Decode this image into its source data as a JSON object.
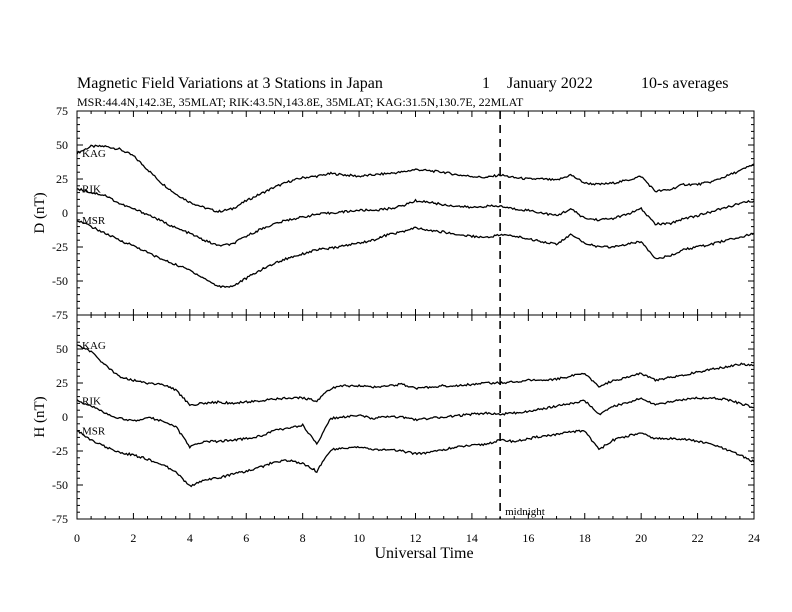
{
  "chart_data": {
    "type": "line",
    "title": "Magnetic Field Variations at 3 Stations in Japan",
    "date_day": "1",
    "date_month_year": "January  2022",
    "averaging": "10-s averages",
    "subtitle": "MSR:44.4N,142.3E, 35MLAT;  RIK:43.5N,143.8E, 35MLAT;  KAG:31.5N,130.7E, 22MLAT",
    "xlabel": "Universal Time",
    "xlim": [
      0,
      24
    ],
    "xticks": [
      0,
      2,
      4,
      6,
      8,
      10,
      12,
      14,
      16,
      18,
      20,
      22,
      24
    ],
    "annotation": {
      "label": "midnight",
      "x": 15
    },
    "panels": [
      {
        "id": "D",
        "ylabel": "D (nT)",
        "ylim": [
          -75,
          75
        ],
        "yticks": [
          75,
          50,
          25,
          0,
          -25,
          -50,
          -75
        ],
        "series": [
          {
            "name": "KAG",
            "x": [
              0,
              0.5,
              1,
              1.5,
              2,
              2.5,
              3,
              3.5,
              4,
              4.5,
              5,
              5.5,
              6,
              6.5,
              7,
              7.5,
              8,
              8.5,
              9,
              9.5,
              10,
              10.5,
              11,
              11.5,
              12,
              12.5,
              13,
              13.5,
              14,
              14.5,
              15,
              15.5,
              16,
              16.5,
              17,
              17.5,
              18,
              18.5,
              19,
              19.5,
              20,
              20.5,
              21,
              21.5,
              22,
              22.5,
              23,
              23.5,
              24
            ],
            "y": [
              44,
              49,
              49,
              47,
              42,
              32,
              22,
              14,
              8,
              4,
              1,
              3,
              9,
              14,
              19,
              23,
              26,
              27,
              29,
              28,
              27,
              28,
              29,
              30,
              32,
              31,
              30,
              28,
              27,
              26,
              28,
              26,
              25,
              25,
              24,
              28,
              22,
              21,
              22,
              24,
              27,
              16,
              17,
              21,
              21,
              23,
              27,
              31,
              36
            ]
          },
          {
            "name": "RIK",
            "x": [
              0,
              0.5,
              1,
              1.5,
              2,
              2.5,
              3,
              3.5,
              4,
              4.5,
              5,
              5.5,
              6,
              6.5,
              7,
              7.5,
              8,
              8.5,
              9,
              9.5,
              10,
              10.5,
              11,
              11.5,
              12,
              12.5,
              13,
              13.5,
              14,
              14.5,
              15,
              15.5,
              16,
              16.5,
              17,
              17.5,
              18,
              18.5,
              19,
              19.5,
              20,
              20.5,
              21,
              21.5,
              22,
              22.5,
              23,
              23.5,
              24
            ],
            "y": [
              18,
              15,
              13,
              7,
              3,
              -1,
              -6,
              -11,
              -15,
              -20,
              -24,
              -23,
              -17,
              -12,
              -8,
              -5,
              -3,
              -1,
              0,
              1,
              2,
              2,
              3,
              5,
              9,
              8,
              6,
              5,
              4,
              5,
              5,
              3,
              2,
              0,
              -2,
              3,
              -4,
              -5,
              -4,
              -1,
              3,
              -8,
              -8,
              -4,
              -2,
              1,
              4,
              7,
              9
            ]
          },
          {
            "name": "MSR",
            "x": [
              0,
              0.5,
              1,
              1.5,
              2,
              2.5,
              3,
              3.5,
              4,
              4.5,
              5,
              5.5,
              6,
              6.5,
              7,
              7.5,
              8,
              8.5,
              9,
              9.5,
              10,
              10.5,
              11,
              11.5,
              12,
              12.5,
              13,
              13.5,
              14,
              14.5,
              15,
              15.5,
              16,
              16.5,
              17,
              17.5,
              18,
              18.5,
              19,
              19.5,
              20,
              20.5,
              21,
              21.5,
              22,
              22.5,
              23,
              23.5,
              24
            ],
            "y": [
              -5,
              -10,
              -15,
              -20,
              -24,
              -29,
              -34,
              -38,
              -42,
              -48,
              -54,
              -54,
              -48,
              -42,
              -37,
              -33,
              -30,
              -27,
              -26,
              -24,
              -22,
              -20,
              -16,
              -14,
              -11,
              -13,
              -14,
              -16,
              -17,
              -18,
              -16,
              -17,
              -19,
              -21,
              -23,
              -16,
              -22,
              -25,
              -25,
              -23,
              -21,
              -33,
              -32,
              -27,
              -25,
              -23,
              -20,
              -18,
              -15
            ]
          }
        ]
      },
      {
        "id": "H",
        "ylabel": "H (nT)",
        "ylim": [
          -75,
          75
        ],
        "yticks": [
          50,
          25,
          0,
          -25,
          -50,
          -75
        ],
        "series": [
          {
            "name": "KAG",
            "x": [
              0,
              0.5,
              1,
              1.5,
              2,
              2.5,
              3,
              3.5,
              4,
              4.5,
              5,
              5.5,
              6,
              6.5,
              7,
              7.5,
              8,
              8.5,
              9,
              9.5,
              10,
              10.5,
              11,
              11.5,
              12,
              12.5,
              13,
              13.5,
              14,
              14.5,
              15,
              15.5,
              16,
              16.5,
              17,
              17.5,
              18,
              18.5,
              19,
              19.5,
              20,
              20.5,
              21,
              21.5,
              22,
              22.5,
              23,
              23.5,
              24
            ],
            "y": [
              53,
              48,
              38,
              30,
              27,
              25,
              24,
              20,
              9,
              10,
              11,
              10,
              11,
              12,
              13,
              14,
              14,
              12,
              21,
              23,
              23,
              22,
              23,
              24,
              21,
              22,
              23,
              23,
              24,
              25,
              25,
              26,
              27,
              27,
              28,
              30,
              32,
              22,
              27,
              29,
              32,
              27,
              29,
              31,
              33,
              35,
              37,
              39,
              38
            ]
          },
          {
            "name": "RIK",
            "x": [
              0,
              0.5,
              1,
              1.5,
              2,
              2.5,
              3,
              3.5,
              4,
              4.5,
              5,
              5.5,
              6,
              6.5,
              7,
              7.5,
              8,
              8.5,
              9,
              9.5,
              10,
              10.5,
              11,
              11.5,
              12,
              12.5,
              13,
              13.5,
              14,
              14.5,
              15,
              15.5,
              16,
              16.5,
              17,
              17.5,
              18,
              18.5,
              19,
              19.5,
              20,
              20.5,
              21,
              21.5,
              22,
              22.5,
              23,
              23.5,
              24
            ],
            "y": [
              12,
              8,
              3,
              -1,
              -3,
              0,
              -3,
              -7,
              -22,
              -18,
              -18,
              -17,
              -16,
              -14,
              -10,
              -8,
              -6,
              -20,
              -1,
              0,
              1,
              -1,
              0,
              0,
              -2,
              -1,
              0,
              1,
              2,
              3,
              2,
              3,
              4,
              6,
              8,
              10,
              12,
              2,
              8,
              10,
              14,
              9,
              11,
              13,
              14,
              14,
              13,
              10,
              7
            ]
          },
          {
            "name": "MSR",
            "x": [
              0,
              0.5,
              1,
              1.5,
              2,
              2.5,
              3,
              3.5,
              4,
              4.5,
              5,
              5.5,
              6,
              6.5,
              7,
              7.5,
              8,
              8.5,
              9,
              9.5,
              10,
              10.5,
              11,
              11.5,
              12,
              12.5,
              13,
              13.5,
              14,
              14.5,
              15,
              15.5,
              16,
              16.5,
              17,
              17.5,
              18,
              18.5,
              19,
              19.5,
              20,
              20.5,
              21,
              21.5,
              22,
              22.5,
              23,
              23.5,
              24
            ],
            "y": [
              -10,
              -17,
              -22,
              -26,
              -28,
              -31,
              -35,
              -40,
              -51,
              -46,
              -45,
              -42,
              -40,
              -37,
              -33,
              -32,
              -34,
              -40,
              -24,
              -23,
              -22,
              -24,
              -24,
              -25,
              -27,
              -26,
              -24,
              -22,
              -21,
              -20,
              -17,
              -18,
              -16,
              -14,
              -13,
              -11,
              -10,
              -24,
              -17,
              -14,
              -12,
              -16,
              -16,
              -16,
              -18,
              -20,
              -24,
              -28,
              -33
            ]
          }
        ]
      }
    ]
  },
  "colors": {
    "line": "#000000",
    "background": "#ffffff"
  }
}
